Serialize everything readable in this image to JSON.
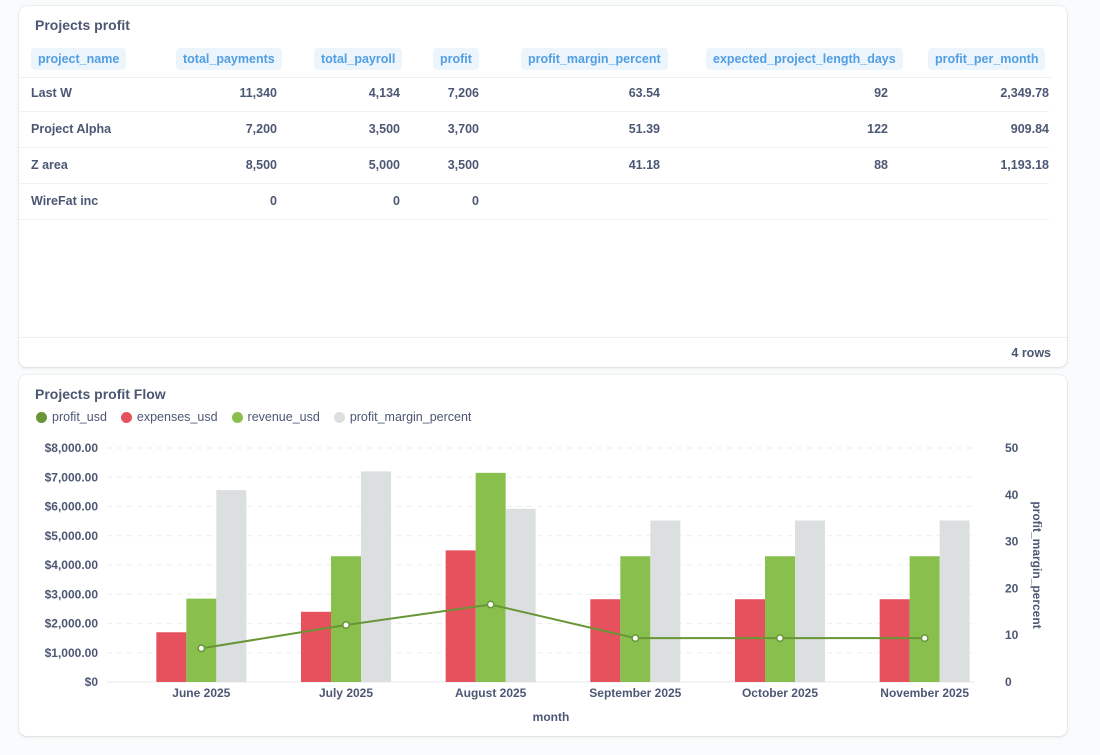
{
  "table_card": {
    "title": "Projects profit",
    "columns": [
      "project_name",
      "total_payments",
      "total_payroll",
      "profit",
      "profit_margin_percent",
      "expected_project_length_days",
      "profit_per_month"
    ],
    "rows": [
      [
        "Last W",
        "11,340",
        "4,134",
        "7,206",
        "63.54",
        "92",
        "2,349.78"
      ],
      [
        "Project Alpha",
        "7,200",
        "3,500",
        "3,700",
        "51.39",
        "122",
        "909.84"
      ],
      [
        "Z area",
        "8,500",
        "5,000",
        "3,500",
        "41.18",
        "88",
        "1,193.18"
      ],
      [
        "WireFat inc",
        "0",
        "0",
        "0",
        "",
        "",
        ""
      ]
    ],
    "row_count": "4 rows"
  },
  "chart_card": {
    "title": "Projects profit Flow"
  },
  "chart_data": {
    "type": "bar",
    "title": "Projects profit Flow",
    "xlabel": "month",
    "ylabel": "",
    "y2label": "profit_margin_percent",
    "categories": [
      "June 2025",
      "July 2025",
      "August 2025",
      "September 2025",
      "October 2025",
      "November 2025"
    ],
    "ylim": [
      0,
      8000
    ],
    "y2lim": [
      0,
      50
    ],
    "y_ticks": [
      "$0",
      "$1,000.00",
      "$2,000.00",
      "$3,000.00",
      "$4,000.00",
      "$5,000.00",
      "$6,000.00",
      "$7,000.00",
      "$8,000.00"
    ],
    "y2_ticks": [
      "0",
      "10",
      "20",
      "30",
      "40",
      "50"
    ],
    "grid": true,
    "legend_position": "top-left",
    "series": [
      {
        "name": "profit_usd",
        "kind": "line",
        "axis": "left",
        "color": "#689636",
        "values": [
          1150,
          1950,
          2650,
          1500,
          1500,
          1500
        ]
      },
      {
        "name": "expenses_usd",
        "kind": "bar",
        "axis": "left",
        "color": "#e5515c",
        "values": [
          1700,
          2400,
          4500,
          2830,
          2830,
          2830
        ]
      },
      {
        "name": "revenue_usd",
        "kind": "bar",
        "axis": "left",
        "color": "#88bf4d",
        "values": [
          2850,
          4300,
          7150,
          4300,
          4300,
          4300
        ]
      },
      {
        "name": "profit_margin_percent",
        "kind": "bar",
        "axis": "right",
        "color": "#dcdfe0",
        "values": [
          41,
          45,
          37,
          34.5,
          34.5,
          34.5
        ]
      }
    ]
  }
}
